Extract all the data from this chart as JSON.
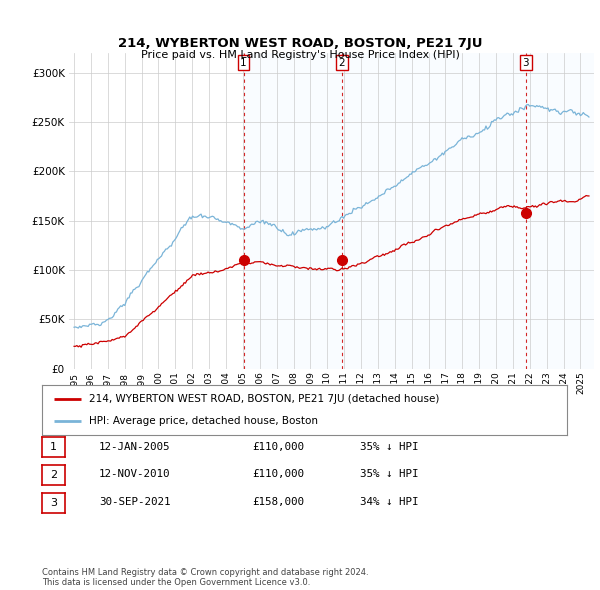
{
  "title": "214, WYBERTON WEST ROAD, BOSTON, PE21 7JU",
  "subtitle": "Price paid vs. HM Land Registry's House Price Index (HPI)",
  "hpi_label": "HPI: Average price, detached house, Boston",
  "property_label": "214, WYBERTON WEST ROAD, BOSTON, PE21 7JU (detached house)",
  "hpi_color": "#7ab4d8",
  "property_color": "#cc0000",
  "vline_color": "#cc0000",
  "shade_color": "#ddeeff",
  "sale_year_nums": [
    2005.04,
    2010.87,
    2021.75
  ],
  "sale_prices": [
    110000,
    110000,
    158000
  ],
  "sale_labels": [
    "1",
    "2",
    "3"
  ],
  "table_data": [
    [
      "1",
      "12-JAN-2005",
      "£110,000",
      "35% ↓ HPI"
    ],
    [
      "2",
      "12-NOV-2010",
      "£110,000",
      "35% ↓ HPI"
    ],
    [
      "3",
      "30-SEP-2021",
      "£158,000",
      "34% ↓ HPI"
    ]
  ],
  "footer": "Contains HM Land Registry data © Crown copyright and database right 2024.\nThis data is licensed under the Open Government Licence v3.0.",
  "ylim": [
    0,
    320000
  ],
  "yticks": [
    0,
    50000,
    100000,
    150000,
    200000,
    250000,
    300000
  ],
  "xlim_start": 1994.7,
  "xlim_end": 2025.8,
  "background_color": "#ffffff",
  "plot_bg_color": "#ffffff",
  "grid_color": "#cccccc",
  "legend_border_color": "#888888",
  "table_num_border_color": "#cc0000"
}
